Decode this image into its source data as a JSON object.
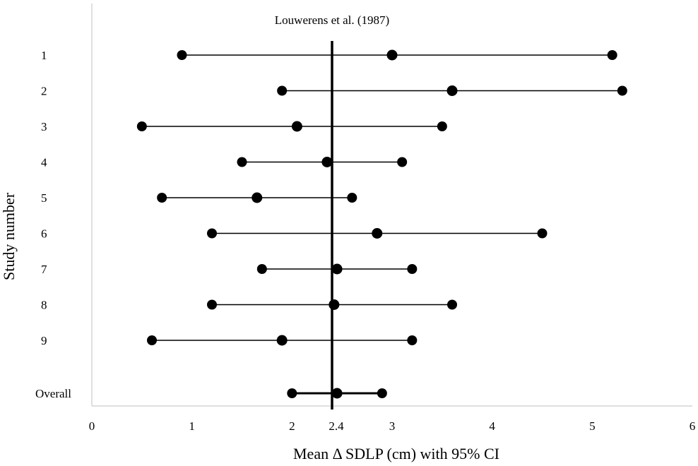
{
  "chart_data": {
    "type": "forest",
    "title": "",
    "xlabel": "Mean Δ SDLP (cm)  with 95% CI",
    "ylabel": "Study number",
    "xlim": [
      0,
      6
    ],
    "x_ticks": [
      "0",
      "1",
      "2",
      "3",
      "4",
      "5",
      "6"
    ],
    "reference_line": {
      "x": 2.4,
      "label": "Louwerens et al. (1987)",
      "tick_label": "2.4"
    },
    "grid": false,
    "studies": [
      {
        "label": "1",
        "lower": 0.9,
        "mean": 3.0,
        "upper": 5.2
      },
      {
        "label": "2",
        "lower": 1.9,
        "mean": 3.6,
        "upper": 5.3
      },
      {
        "label": "3",
        "lower": 0.5,
        "mean": 2.05,
        "upper": 3.5
      },
      {
        "label": "4",
        "lower": 1.5,
        "mean": 2.35,
        "upper": 3.1
      },
      {
        "label": "5",
        "lower": 0.7,
        "mean": 1.65,
        "upper": 2.6
      },
      {
        "label": "6",
        "lower": 1.2,
        "mean": 2.85,
        "upper": 4.5
      },
      {
        "label": "7",
        "lower": 1.7,
        "mean": 2.45,
        "upper": 3.2
      },
      {
        "label": "8",
        "lower": 1.2,
        "mean": 2.42,
        "upper": 3.6
      },
      {
        "label": "9",
        "lower": 0.6,
        "mean": 1.9,
        "upper": 3.2
      },
      {
        "label": "Overall",
        "lower": 2.0,
        "mean": 2.45,
        "upper": 2.9
      }
    ]
  }
}
